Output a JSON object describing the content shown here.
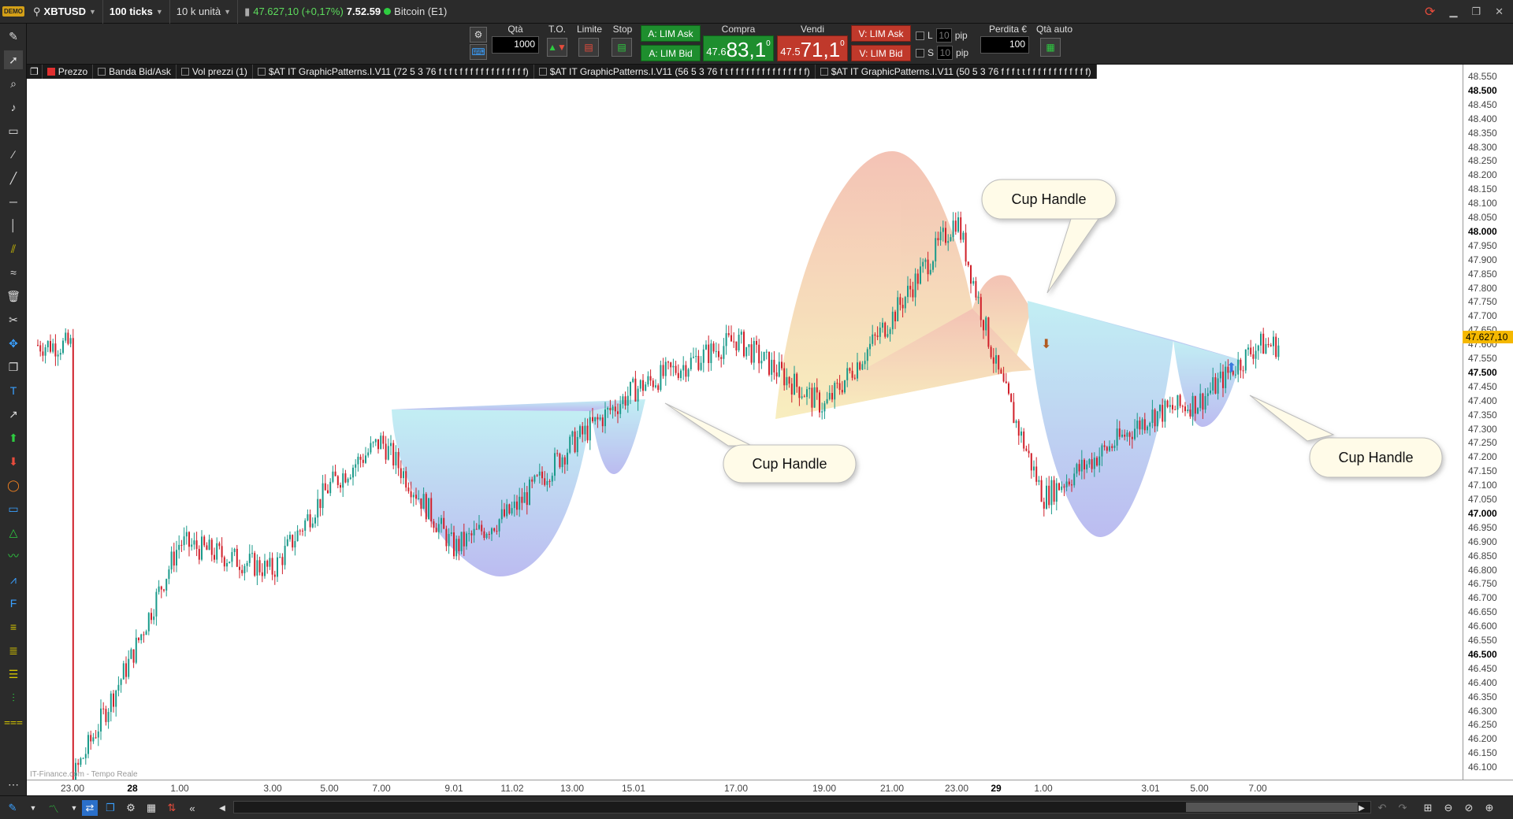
{
  "title_bar": {
    "logo_text": "DEMO",
    "symbol": "XBTUSD",
    "interval": "100 ticks",
    "units": "10 k unità",
    "price_change": "47.627,10 (+0,17%)",
    "time": "7.52.59",
    "instrument": "Bitcoin (E1)"
  },
  "trade_bar": {
    "qty_label": "Qtà",
    "qty_value": "1000",
    "to_label": "T.O.",
    "limit_label": "Limite",
    "stop_label": "Stop",
    "buy_lim_ask": "A: LIM Ask",
    "buy_lim_bid": "A: LIM Bid",
    "buy_label": "Compra",
    "buy_small": "47.6",
    "buy_big": "83,1",
    "buy_sup": "0",
    "sell_label": "Vendi",
    "sell_small": "47.5",
    "sell_big": "71,1",
    "sell_sup": "0",
    "sell_lim_ask": "V: LIM Ask",
    "sell_lim_bid": "V: LIM Bid",
    "l_label": "L",
    "s_label": "S",
    "pip_value": "10",
    "pip_label": "pip",
    "loss_label": "Perdita €",
    "loss_value": "100",
    "auto_qty_label": "Qtà auto"
  },
  "tabs": [
    {
      "label": "Prezzo",
      "color": "#e03030"
    },
    {
      "label": "Banda Bid/Ask",
      "color": ""
    },
    {
      "label": "Vol prezzi (1)",
      "color": ""
    },
    {
      "label": "$AT IT GraphicPatterns.I.V11 (72 5 3 76 f t f t f f f f f f f f f f f f f)",
      "color": ""
    },
    {
      "label": "$AT IT GraphicPatterns.I.V11 (56 5 3 76 f t f f f f f f f f f f f f f f f)",
      "color": ""
    },
    {
      "label": "$AT IT GraphicPatterns.I.V11 (50 5 3 76 f f f t t f f f f f f f f f f f f)",
      "color": ""
    }
  ],
  "y_axis": {
    "labels": [
      {
        "v": "48.550",
        "b": false
      },
      {
        "v": "48.500",
        "b": true
      },
      {
        "v": "48.450",
        "b": false
      },
      {
        "v": "48.400",
        "b": false
      },
      {
        "v": "48.350",
        "b": false
      },
      {
        "v": "48.300",
        "b": false
      },
      {
        "v": "48.250",
        "b": false
      },
      {
        "v": "48.200",
        "b": false
      },
      {
        "v": "48.150",
        "b": false
      },
      {
        "v": "48.100",
        "b": false
      },
      {
        "v": "48.050",
        "b": false
      },
      {
        "v": "48.000",
        "b": true
      },
      {
        "v": "47.950",
        "b": false
      },
      {
        "v": "47.900",
        "b": false
      },
      {
        "v": "47.850",
        "b": false
      },
      {
        "v": "47.800",
        "b": false
      },
      {
        "v": "47.750",
        "b": false
      },
      {
        "v": "47.700",
        "b": false
      },
      {
        "v": "47.650",
        "b": false
      },
      {
        "v": "47.600",
        "b": false
      },
      {
        "v": "47.550",
        "b": false
      },
      {
        "v": "47.500",
        "b": true
      },
      {
        "v": "47.450",
        "b": false
      },
      {
        "v": "47.400",
        "b": false
      },
      {
        "v": "47.350",
        "b": false
      },
      {
        "v": "47.300",
        "b": false
      },
      {
        "v": "47.250",
        "b": false
      },
      {
        "v": "47.200",
        "b": false
      },
      {
        "v": "47.150",
        "b": false
      },
      {
        "v": "47.100",
        "b": false
      },
      {
        "v": "47.050",
        "b": false
      },
      {
        "v": "47.000",
        "b": true
      },
      {
        "v": "46.950",
        "b": false
      },
      {
        "v": "46.900",
        "b": false
      },
      {
        "v": "46.850",
        "b": false
      },
      {
        "v": "46.800",
        "b": false
      },
      {
        "v": "46.750",
        "b": false
      },
      {
        "v": "46.700",
        "b": false
      },
      {
        "v": "46.650",
        "b": false
      },
      {
        "v": "46.600",
        "b": false
      },
      {
        "v": "46.550",
        "b": false
      },
      {
        "v": "46.500",
        "b": true
      },
      {
        "v": "46.450",
        "b": false
      },
      {
        "v": "46.400",
        "b": false
      },
      {
        "v": "46.350",
        "b": false
      },
      {
        "v": "46.300",
        "b": false
      },
      {
        "v": "46.250",
        "b": false
      },
      {
        "v": "46.200",
        "b": false
      },
      {
        "v": "46.150",
        "b": false
      },
      {
        "v": "46.100",
        "b": false
      }
    ],
    "current_price": "47.627,10"
  },
  "x_axis": {
    "labels": [
      {
        "t": "23.00",
        "b": false
      },
      {
        "t": "28",
        "b": true
      },
      {
        "t": "1.00",
        "b": false
      },
      {
        "t": "3.00",
        "b": false
      },
      {
        "t": "5.00",
        "b": false
      },
      {
        "t": "7.00",
        "b": false
      },
      {
        "t": "9.01",
        "b": false
      },
      {
        "t": "11.02",
        "b": false
      },
      {
        "t": "13.00",
        "b": false
      },
      {
        "t": "15.01",
        "b": false
      },
      {
        "t": "17.00",
        "b": false
      },
      {
        "t": "19.00",
        "b": false
      },
      {
        "t": "21.00",
        "b": false
      },
      {
        "t": "23.00",
        "b": false
      },
      {
        "t": "29",
        "b": true
      },
      {
        "t": "1.00",
        "b": false
      },
      {
        "t": "3.01",
        "b": false
      },
      {
        "t": "5.00",
        "b": false
      },
      {
        "t": "7.00",
        "b": false
      }
    ]
  },
  "callouts": [
    {
      "text": "Cup Handle"
    },
    {
      "text": "Cup Handle"
    },
    {
      "text": "Cup Handle"
    }
  ],
  "watermark": "IT-Finance.com - Tempo Reale",
  "colors": {
    "bull": "#1a9a8a",
    "bear": "#d0202a",
    "price_tag": "#f5b800",
    "buy": "#1e8e2e",
    "sell": "#c0392b"
  },
  "chart_data": {
    "type": "line",
    "symbol": "XBTUSD",
    "x": [
      "23.00",
      "28",
      "1.00",
      "3.00",
      "5.00",
      "7.00",
      "9.01",
      "11.02",
      "13.00",
      "15.01",
      "17.00",
      "19.00",
      "21.00",
      "23.00",
      "29",
      "1.00",
      "3.01",
      "5.00",
      "7.00"
    ],
    "series": [
      {
        "values": [
          46060,
          46500,
          46900,
          46800,
          47100,
          47260,
          46880,
          47010,
          47250,
          47440,
          47620,
          47380,
          47700,
          48050,
          47520,
          47060,
          47350,
          47400,
          47600
        ]
      }
    ],
    "ylim": [
      46080,
      48580
    ],
    "current_price": 47627.1
  }
}
